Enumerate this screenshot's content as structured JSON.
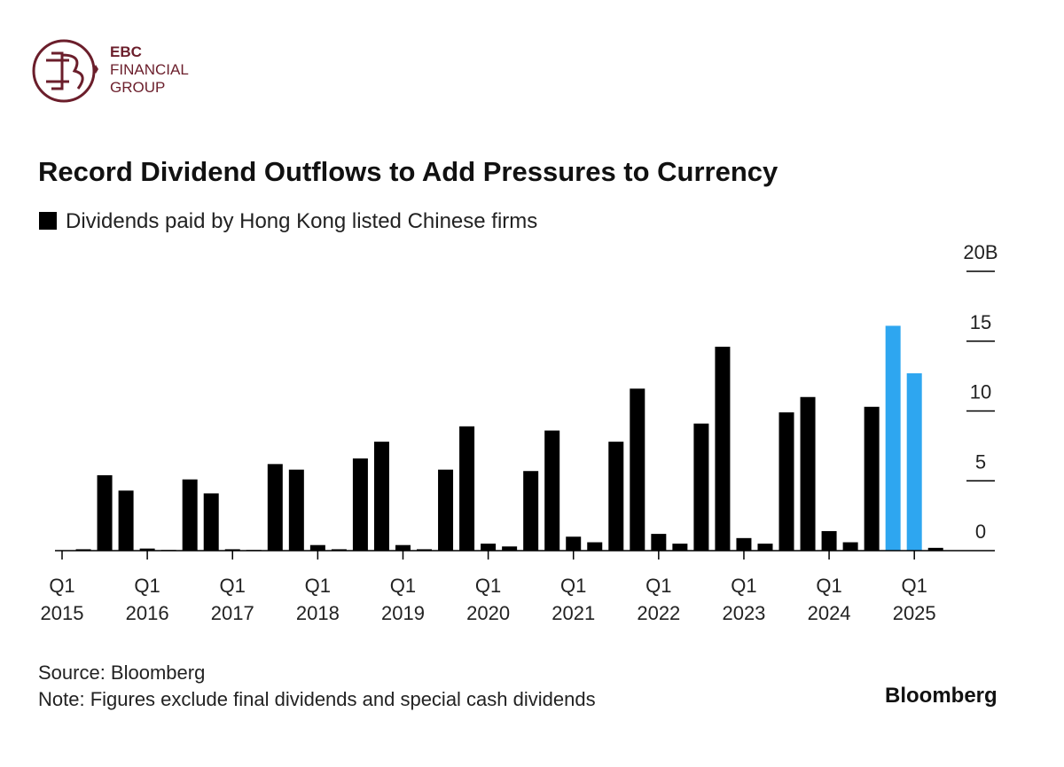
{
  "header": {
    "brand_line1": "EBC",
    "brand_line2": "FINANCIAL",
    "brand_line3": "GROUP"
  },
  "chart_data": {
    "type": "bar",
    "title": "Record Dividend Outflows to Add Pressures to Currency",
    "legend": "Dividends paid by Hong Kong listed Chinese firms",
    "categories": [
      "Q1 2015",
      null,
      null,
      null,
      "Q1 2016",
      null,
      null,
      null,
      "Q1 2017",
      null,
      null,
      null,
      "Q1 2018",
      null,
      null,
      null,
      "Q1 2019",
      null,
      null,
      null,
      "Q1 2020",
      null,
      null,
      null,
      "Q1 2021",
      null,
      null,
      null,
      "Q1 2022",
      null,
      null,
      null,
      "Q1 2023",
      null,
      null,
      null,
      "Q1 2024",
      null,
      null,
      null,
      "Q1 2025",
      null
    ],
    "values": [
      0,
      0.1,
      5.4,
      4.3,
      0.15,
      0.05,
      5.1,
      4.1,
      0.1,
      0.05,
      6.2,
      5.8,
      0.4,
      0.1,
      6.6,
      7.8,
      0.4,
      0.1,
      5.8,
      8.9,
      0.5,
      0.3,
      5.7,
      8.6,
      1.0,
      0.6,
      7.8,
      11.6,
      1.2,
      0.5,
      9.1,
      14.6,
      0.9,
      0.5,
      9.9,
      11.0,
      1.4,
      0.6,
      10.3,
      16.1,
      12.7,
      0.2
    ],
    "colors": [
      "#000",
      "#000",
      "#000",
      "#000",
      "#000",
      "#000",
      "#000",
      "#000",
      "#000",
      "#000",
      "#000",
      "#000",
      "#000",
      "#000",
      "#000",
      "#000",
      "#000",
      "#000",
      "#000",
      "#000",
      "#000",
      "#000",
      "#000",
      "#000",
      "#000",
      "#000",
      "#000",
      "#000",
      "#000",
      "#000",
      "#000",
      "#000",
      "#000",
      "#000",
      "#000",
      "#000",
      "#000",
      "#000",
      "#000",
      "#2ea6f0",
      "#2ea6f0",
      "#000"
    ],
    "ylim": [
      0,
      20
    ],
    "yticks": [
      0,
      5,
      10,
      15,
      {
        "value": 20,
        "label": "20B"
      }
    ],
    "grid": false,
    "source": "Source: Bloomberg",
    "note": "Note: Figures exclude final dividends and special cash dividends",
    "publisher": "Bloomberg"
  }
}
